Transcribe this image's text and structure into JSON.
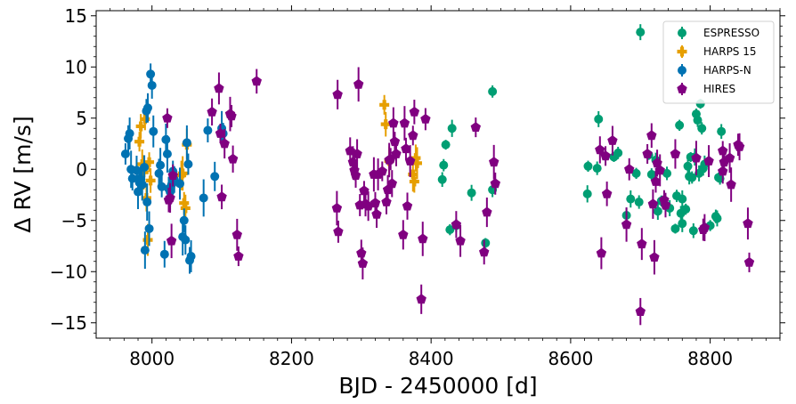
{
  "chart_data": {
    "type": "scatter",
    "title": "",
    "xlabel": "BJD - 2450000 [d]",
    "ylabel": "Δ RV [m/s]",
    "xlim": [
      7920,
      8900
    ],
    "ylim": [
      -16.5,
      15.5
    ],
    "xticks": [
      8000,
      8200,
      8400,
      8600,
      8800
    ],
    "yticks": [
      -15,
      -10,
      -5,
      0,
      5,
      10,
      15
    ],
    "xtick_labels": [
      "8000",
      "8200",
      "8400",
      "8600",
      "8800"
    ],
    "ytick_labels": [
      "−15",
      "−10",
      "−5",
      "0",
      "5",
      "10",
      "15"
    ],
    "legend_position": "top-right",
    "series": [
      {
        "name": "ESPRESSO",
        "color": "#009E73",
        "marker": "circle",
        "points": [
          [
            8421,
            2.4
          ],
          [
            8418,
            0.4
          ],
          [
            8416,
            -1.0
          ],
          [
            8430,
            4.0
          ],
          [
            8427,
            -5.9
          ],
          [
            8436,
            -5.5
          ],
          [
            8458,
            -2.3
          ],
          [
            8478,
            -7.2
          ],
          [
            8488,
            7.6
          ],
          [
            8488,
            -2.0
          ],
          [
            8624,
            -2.4
          ],
          [
            8625,
            0.3
          ],
          [
            8638,
            0.1
          ],
          [
            8640,
            4.9
          ],
          [
            8662,
            1.2
          ],
          [
            8668,
            1.6
          ],
          [
            8680,
            -4.5
          ],
          [
            8686,
            -2.9
          ],
          [
            8694,
            -0.4
          ],
          [
            8698,
            -3.2
          ],
          [
            8700,
            13.4
          ],
          [
            8712,
            1.4
          ],
          [
            8716,
            -0.5
          ],
          [
            8722,
            0.9
          ],
          [
            8725,
            -4.1
          ],
          [
            8730,
            -3.1
          ],
          [
            8738,
            -0.4
          ],
          [
            8742,
            -3.8
          ],
          [
            8750,
            -5.8
          ],
          [
            8752,
            -2.6
          ],
          [
            8758,
            -4.3
          ],
          [
            8760,
            -2.9
          ],
          [
            8765,
            -3.9
          ],
          [
            8768,
            0.3
          ],
          [
            8770,
            -0.7
          ],
          [
            8772,
            1.2
          ],
          [
            8774,
            -0.8
          ],
          [
            8776,
            -6.0
          ],
          [
            8778,
            1.2
          ],
          [
            8780,
            5.4
          ],
          [
            8782,
            4.8
          ],
          [
            8784,
            -0.4
          ],
          [
            8786,
            6.4
          ],
          [
            8788,
            4.0
          ],
          [
            8790,
            0.1
          ],
          [
            8792,
            0.5
          ],
          [
            8800,
            -5.5
          ],
          [
            8808,
            -4.6
          ],
          [
            8810,
            -4.8
          ],
          [
            8812,
            -0.8
          ],
          [
            8814,
            -0.9
          ],
          [
            8816,
            3.7
          ],
          [
            8760,
            -5.3
          ],
          [
            8756,
            4.3
          ]
        ]
      },
      {
        "name": "HARPS 15",
        "color": "#E69F00",
        "marker": "plus",
        "points": [
          [
            7982,
            2.7
          ],
          [
            7984,
            4.2
          ],
          [
            7986,
            0.5
          ],
          [
            7988,
            -0.3
          ],
          [
            7990,
            4.9
          ],
          [
            7992,
            -2.8
          ],
          [
            7994,
            -6.9
          ],
          [
            7996,
            0.7
          ],
          [
            7998,
            -1.1
          ],
          [
            8042,
            -0.6
          ],
          [
            8044,
            -0.4
          ],
          [
            8046,
            -3.3
          ],
          [
            8048,
            -3.8
          ],
          [
            8050,
            2.4
          ],
          [
            8333,
            6.3
          ],
          [
            8335,
            4.4
          ],
          [
            8340,
            0.8
          ],
          [
            8374,
            -0.5
          ],
          [
            8376,
            -1.2
          ],
          [
            8378,
            1.1
          ],
          [
            8380,
            0.6
          ]
        ]
      },
      {
        "name": "HARPS-N",
        "color": "#0072B2",
        "marker": "circle",
        "points": [
          [
            7962,
            1.5
          ],
          [
            7966,
            3.0
          ],
          [
            7968,
            3.5
          ],
          [
            7970,
            0.0
          ],
          [
            7972,
            -0.9
          ],
          [
            7978,
            -0.1
          ],
          [
            7980,
            -2.2
          ],
          [
            7982,
            -1.3
          ],
          [
            7984,
            -1.0
          ],
          [
            7986,
            -1.5
          ],
          [
            7990,
            -7.9
          ],
          [
            7992,
            5.7
          ],
          [
            7994,
            6.0
          ],
          [
            7996,
            -5.8
          ],
          [
            7998,
            9.3
          ],
          [
            8000,
            8.2
          ],
          [
            8002,
            3.7
          ],
          [
            7993,
            -3.2
          ],
          [
            7989,
            0.2
          ],
          [
            8010,
            -0.4
          ],
          [
            8012,
            0.4
          ],
          [
            8014,
            -1.7
          ],
          [
            8018,
            -8.3
          ],
          [
            8020,
            2.9
          ],
          [
            8022,
            1.5
          ],
          [
            8024,
            -1.9
          ],
          [
            8026,
            -2.2
          ],
          [
            8028,
            -1.5
          ],
          [
            8030,
            -0.2
          ],
          [
            8032,
            -1.0
          ],
          [
            8040,
            -1.4
          ],
          [
            8044,
            -6.6
          ],
          [
            8046,
            -5.0
          ],
          [
            8048,
            -6.9
          ],
          [
            8050,
            2.6
          ],
          [
            8052,
            0.5
          ],
          [
            8054,
            -8.9
          ],
          [
            8056,
            -8.5
          ],
          [
            8074,
            -2.8
          ],
          [
            8080,
            3.8
          ],
          [
            8090,
            -0.7
          ],
          [
            8100,
            4.0
          ],
          [
            8102,
            3.5
          ]
        ]
      },
      {
        "name": "HIRES",
        "color": "#800080",
        "marker": "pentagon",
        "points": [
          [
            8022,
            5.0
          ],
          [
            8024,
            -3.0
          ],
          [
            8026,
            -2.8
          ],
          [
            8028,
            -7.0
          ],
          [
            8030,
            -0.6
          ],
          [
            8086,
            5.6
          ],
          [
            8096,
            7.9
          ],
          [
            8098,
            3.5
          ],
          [
            8100,
            -2.7
          ],
          [
            8104,
            2.5
          ],
          [
            8112,
            5.4
          ],
          [
            8114,
            5.2
          ],
          [
            8116,
            1.0
          ],
          [
            8122,
            -6.4
          ],
          [
            8124,
            -8.5
          ],
          [
            8150,
            8.6
          ],
          [
            8266,
            7.3
          ],
          [
            8265,
            -3.8
          ],
          [
            8267,
            -6.1
          ],
          [
            8284,
            1.8
          ],
          [
            8288,
            0.7
          ],
          [
            8290,
            -0.1
          ],
          [
            8292,
            -0.6
          ],
          [
            8294,
            1.5
          ],
          [
            8296,
            8.3
          ],
          [
            8298,
            -3.5
          ],
          [
            8300,
            -8.2
          ],
          [
            8302,
            -9.2
          ],
          [
            8304,
            -2.1
          ],
          [
            8306,
            -3.4
          ],
          [
            8310,
            -3.6
          ],
          [
            8318,
            -0.5
          ],
          [
            8320,
            -3.3
          ],
          [
            8322,
            -4.4
          ],
          [
            8324,
            -0.5
          ],
          [
            8330,
            -0.2
          ],
          [
            8336,
            -3.2
          ],
          [
            8338,
            -2.0
          ],
          [
            8340,
            0.9
          ],
          [
            8342,
            1.0
          ],
          [
            8344,
            -1.4
          ],
          [
            8346,
            4.5
          ],
          [
            8348,
            2.7
          ],
          [
            8350,
            1.5
          ],
          [
            8360,
            -6.4
          ],
          [
            8362,
            4.5
          ],
          [
            8364,
            2.0
          ],
          [
            8366,
            -3.6
          ],
          [
            8370,
            0.8
          ],
          [
            8374,
            3.3
          ],
          [
            8376,
            5.6
          ],
          [
            8386,
            -12.7
          ],
          [
            8388,
            -6.8
          ],
          [
            8392,
            4.9
          ],
          [
            8436,
            -5.4
          ],
          [
            8442,
            -7.0
          ],
          [
            8464,
            4.1
          ],
          [
            8476,
            -8.1
          ],
          [
            8480,
            -4.2
          ],
          [
            8490,
            0.7
          ],
          [
            8492,
            -1.4
          ],
          [
            8642,
            1.9
          ],
          [
            8644,
            -8.2
          ],
          [
            8650,
            1.3
          ],
          [
            8652,
            -2.4
          ],
          [
            8660,
            2.8
          ],
          [
            8680,
            -5.4
          ],
          [
            8684,
            0.0
          ],
          [
            8700,
            -13.9
          ],
          [
            8702,
            -7.3
          ],
          [
            8710,
            1.5
          ],
          [
            8716,
            3.3
          ],
          [
            8718,
            -3.4
          ],
          [
            8720,
            -8.6
          ],
          [
            8722,
            -1.2
          ],
          [
            8724,
            0.6
          ],
          [
            8728,
            -0.1
          ],
          [
            8734,
            -3.0
          ],
          [
            8736,
            -3.5
          ],
          [
            8750,
            1.5
          ],
          [
            8780,
            1.1
          ],
          [
            8790,
            -5.9
          ],
          [
            8792,
            -5.7
          ],
          [
            8798,
            0.8
          ],
          [
            8818,
            1.8
          ],
          [
            8820,
            0.7
          ],
          [
            8828,
            1.1
          ],
          [
            8830,
            -1.5
          ],
          [
            8840,
            2.4
          ],
          [
            8842,
            2.2
          ],
          [
            8854,
            -5.3
          ],
          [
            8856,
            -9.1
          ],
          [
            8818,
            -0.2
          ]
        ]
      }
    ]
  }
}
